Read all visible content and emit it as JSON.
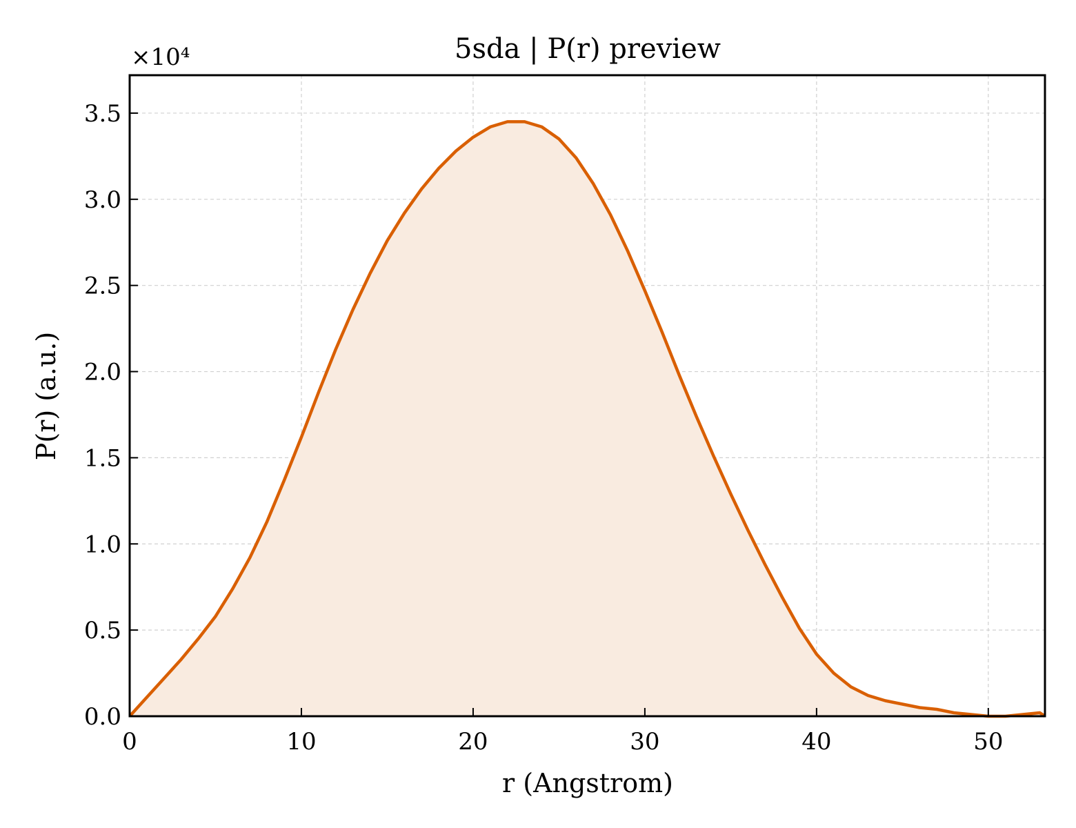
{
  "chart_data": {
    "type": "area",
    "title": "5sda | P(r) preview",
    "xlabel": "r (Angstrom)",
    "ylabel": "P(r) (a.u.)",
    "y_multiplier_label": "×10⁴",
    "y_multiplier": 10000,
    "xlim": [
      0,
      53.3
    ],
    "ylim": [
      0,
      3.72
    ],
    "x_ticks": [
      0,
      10,
      20,
      30,
      40,
      50
    ],
    "y_ticks": [
      0.0,
      0.5,
      1.0,
      1.5,
      2.0,
      2.5,
      3.0,
      3.5
    ],
    "grid": true,
    "line_color": "#d95f02",
    "fill_color": "#f9ebe0",
    "series": [
      {
        "x": [
          0,
          1,
          2,
          3,
          4,
          5,
          6,
          7,
          8,
          9,
          10,
          11,
          12,
          13,
          14,
          15,
          16,
          17,
          18,
          19,
          20,
          21,
          22,
          23,
          24,
          25,
          26,
          27,
          28,
          29,
          30,
          31,
          32,
          33,
          34,
          35,
          36,
          37,
          38,
          39,
          40,
          41,
          42,
          43,
          44,
          45,
          46,
          47,
          48,
          49,
          50,
          51,
          52,
          53,
          53.3
        ],
        "y": [
          0.0,
          0.11,
          0.22,
          0.33,
          0.45,
          0.58,
          0.74,
          0.92,
          1.13,
          1.37,
          1.62,
          1.88,
          2.13,
          2.36,
          2.57,
          2.76,
          2.92,
          3.06,
          3.18,
          3.28,
          3.36,
          3.42,
          3.45,
          3.45,
          3.42,
          3.35,
          3.24,
          3.09,
          2.91,
          2.7,
          2.47,
          2.23,
          1.98,
          1.74,
          1.51,
          1.29,
          1.08,
          0.88,
          0.69,
          0.51,
          0.36,
          0.25,
          0.17,
          0.12,
          0.09,
          0.07,
          0.05,
          0.04,
          0.02,
          0.01,
          0.0,
          0.0,
          0.01,
          0.02,
          0.0
        ]
      }
    ]
  }
}
